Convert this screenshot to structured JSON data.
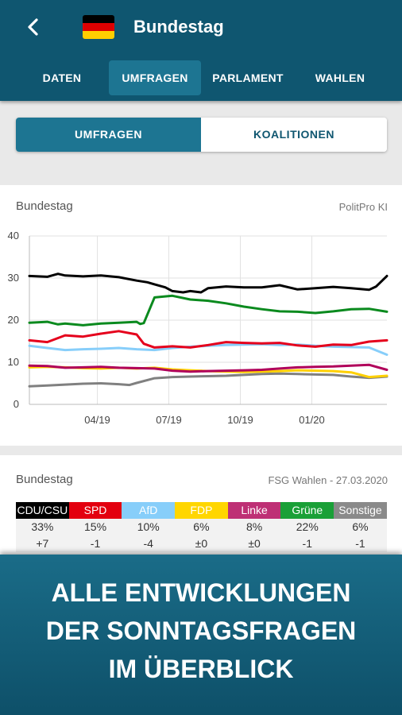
{
  "header": {
    "title": "Bundestag",
    "flag_colors": [
      "#000000",
      "#dd0000",
      "#ffce00"
    ]
  },
  "tabs": [
    {
      "label": "DATEN",
      "active": false
    },
    {
      "label": "UMFRAGEN",
      "active": true
    },
    {
      "label": "PARLAMENT",
      "active": false
    },
    {
      "label": "WAHLEN",
      "active": false
    }
  ],
  "segment": {
    "options": [
      "UMFRAGEN",
      "KOALITIONEN"
    ],
    "active_index": 0,
    "active_color": "#1d7592"
  },
  "chart_card": {
    "title": "Bundestag",
    "source": "PolitPro KI"
  },
  "chart_data": {
    "type": "line",
    "yticks": [
      0,
      10,
      20,
      30,
      40
    ],
    "ylim": [
      0,
      40
    ],
    "xlim": [
      0,
      100
    ],
    "xticks": [
      {
        "label": "04/19",
        "x": 19
      },
      {
        "label": "07/19",
        "x": 39
      },
      {
        "label": "10/19",
        "x": 59
      },
      {
        "label": "01/20",
        "x": 79
      }
    ],
    "grid": true,
    "series": [
      {
        "color": "#000000",
        "x": [
          0,
          5,
          8,
          10,
          15,
          20,
          25,
          30,
          33,
          35,
          38,
          40,
          43,
          45,
          48,
          50,
          55,
          60,
          65,
          70,
          75,
          80,
          85,
          90,
          95,
          97,
          100
        ],
        "y": [
          30.5,
          30.3,
          31,
          30.6,
          30.4,
          30.6,
          30.2,
          29.4,
          29,
          28.5,
          27.8,
          26.9,
          26.6,
          26.9,
          26.6,
          27.6,
          28,
          27.8,
          27.8,
          28.3,
          27.3,
          27.6,
          27.9,
          27.6,
          27.2,
          28,
          30.5
        ]
      },
      {
        "color": "#0a8a1e",
        "x": [
          0,
          5,
          8,
          10,
          15,
          20,
          25,
          30,
          31,
          32,
          35,
          40,
          45,
          50,
          55,
          60,
          65,
          70,
          75,
          80,
          85,
          90,
          95,
          100
        ],
        "y": [
          19.4,
          19.6,
          19,
          19.2,
          18.8,
          19.2,
          19.4,
          19.6,
          19.1,
          19.3,
          25.4,
          25.8,
          24.9,
          24.6,
          24,
          23.2,
          22.6,
          22.1,
          22,
          21.7,
          22.1,
          22.6,
          22.7,
          22
        ]
      },
      {
        "color": "#e5001c",
        "x": [
          0,
          5,
          10,
          15,
          20,
          25,
          30,
          32,
          35,
          40,
          45,
          50,
          55,
          60,
          65,
          70,
          75,
          80,
          85,
          90,
          95,
          100
        ],
        "y": [
          15.2,
          14.8,
          16.4,
          16.1,
          16.8,
          17.4,
          16.6,
          14.4,
          13.5,
          13.8,
          13.5,
          14.1,
          14.8,
          14.6,
          14.5,
          14.6,
          14,
          13.7,
          14.2,
          14.1,
          14.9,
          15.2
        ]
      },
      {
        "color": "#87cefa",
        "x": [
          0,
          5,
          10,
          15,
          20,
          25,
          30,
          35,
          40,
          45,
          50,
          55,
          60,
          65,
          70,
          75,
          80,
          85,
          90,
          95,
          100
        ],
        "y": [
          13.9,
          13.4,
          12.9,
          13.1,
          13.2,
          13.4,
          13.1,
          12.9,
          13.4,
          13.7,
          13.9,
          14.1,
          14.2,
          14.3,
          14.1,
          14.2,
          13.9,
          13.7,
          13.6,
          13.5,
          11.8
        ]
      },
      {
        "color": "#b0005a",
        "x": [
          0,
          5,
          10,
          15,
          20,
          25,
          30,
          35,
          40,
          45,
          50,
          55,
          60,
          65,
          70,
          75,
          80,
          85,
          90,
          95,
          100
        ],
        "y": [
          9.2,
          9.1,
          8.7,
          8.8,
          8.9,
          8.7,
          8.6,
          8.5,
          8,
          7.8,
          7.9,
          8,
          8.1,
          8.2,
          8.5,
          8.8,
          8.9,
          9,
          9.2,
          9.4,
          8.2
        ]
      },
      {
        "color": "#ffd000",
        "x": [
          0,
          5,
          10,
          15,
          20,
          25,
          30,
          35,
          40,
          45,
          50,
          55,
          60,
          65,
          70,
          75,
          80,
          85,
          90,
          95,
          100
        ],
        "y": [
          8.8,
          8.9,
          8.8,
          8.6,
          8.5,
          8.7,
          8.5,
          8.7,
          8.3,
          8.1,
          7.9,
          7.8,
          7.7,
          7.8,
          7.9,
          8.1,
          8,
          7.9,
          7.6,
          6.5,
          6.8
        ]
      },
      {
        "color": "#808080",
        "x": [
          0,
          5,
          10,
          15,
          20,
          25,
          28,
          30,
          35,
          40,
          45,
          50,
          55,
          60,
          65,
          70,
          75,
          80,
          85,
          90,
          95,
          100
        ],
        "y": [
          4.3,
          4.5,
          4.7,
          4.9,
          5,
          4.8,
          4.6,
          5.1,
          6.2,
          6.5,
          6.6,
          6.7,
          6.8,
          7,
          7.2,
          7.3,
          7.2,
          7.1,
          7,
          6.6,
          6.3,
          6.6
        ]
      }
    ]
  },
  "results_card": {
    "title": "Bundestag",
    "source": "FSG Wahlen - 27.03.2020",
    "parties": [
      {
        "name": "CDU/CSU",
        "color": "#000000",
        "percent": "33%",
        "change": "+7"
      },
      {
        "name": "SPD",
        "color": "#e3000f",
        "percent": "15%",
        "change": "-1"
      },
      {
        "name": "AfD",
        "color": "#87cefa",
        "percent": "10%",
        "change": "-4"
      },
      {
        "name": "FDP",
        "color": "#ffd600",
        "percent": "6%",
        "change": "±0"
      },
      {
        "name": "Linke",
        "color": "#be3075",
        "percent": "8%",
        "change": "±0"
      },
      {
        "name": "Grüne",
        "color": "#1aa037",
        "percent": "22%",
        "change": "-1"
      },
      {
        "name": "Sonstige",
        "color": "#8a8a8a",
        "percent": "6%",
        "change": "-1"
      }
    ]
  },
  "banner": {
    "lines": [
      "ALLE ENTWICKLUNGEN",
      "DER SONNTAGSFRAGEN",
      "IM ÜBERBLICK"
    ]
  }
}
